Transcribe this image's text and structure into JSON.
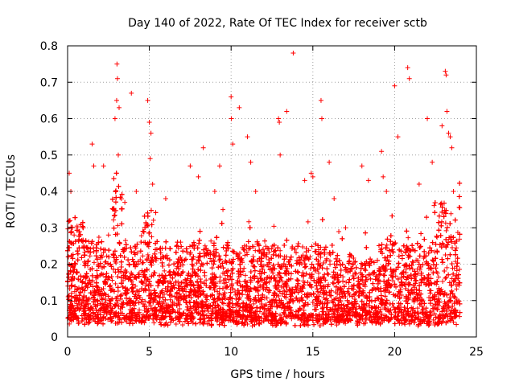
{
  "chart_data": {
    "type": "scatter",
    "title": "Day 140 of 2022, Rate Of TEC Index for receiver sctb",
    "xlabel": "GPS time / hours",
    "ylabel": "ROTI / TECUs",
    "xlim": [
      0,
      25
    ],
    "ylim": [
      0,
      0.8
    ],
    "xticks": [
      "0",
      "5",
      "10",
      "15",
      "20",
      "25"
    ],
    "yticks": [
      "0",
      "0.1",
      "0.2",
      "0.3",
      "0.4",
      "0.5",
      "0.6",
      "0.7",
      "0.8"
    ],
    "grid": true,
    "marker": "+",
    "color": "#ff0000",
    "series": [
      {
        "x": [
          0.1,
          0.15,
          0.2,
          0.4,
          0.6,
          1.0,
          1.5,
          1.6,
          2.2,
          2.5,
          2.9,
          3.0,
          3.02,
          3.05,
          3.1,
          3.15,
          3.5,
          3.9,
          4.2,
          4.9,
          5.0,
          5.05,
          5.1,
          5.2,
          6.0,
          7.5,
          8.0,
          8.3,
          9.0,
          9.3,
          9.5,
          10.0,
          10.02,
          10.1,
          10.5,
          11.0,
          11.2,
          11.5,
          12.9,
          12.95,
          13.0,
          13.4,
          13.8,
          14.5,
          14.9,
          15.0,
          15.5,
          15.55,
          16.0,
          16.3,
          17.0,
          18.0,
          18.4,
          19.2,
          19.3,
          19.5,
          20.0,
          20.2,
          20.8,
          20.9,
          21.5,
          22.0,
          22.3,
          22.9,
          23.1,
          23.15,
          23.2,
          23.3,
          23.4,
          23.5,
          23.6
        ],
        "y": [
          0.45,
          0.32,
          0.4,
          0.28,
          0.3,
          0.25,
          0.53,
          0.47,
          0.47,
          0.28,
          0.6,
          0.65,
          0.75,
          0.71,
          0.5,
          0.63,
          0.37,
          0.67,
          0.4,
          0.65,
          0.59,
          0.49,
          0.56,
          0.42,
          0.38,
          0.47,
          0.44,
          0.52,
          0.4,
          0.47,
          0.35,
          0.66,
          0.6,
          0.53,
          0.63,
          0.55,
          0.48,
          0.4,
          0.6,
          0.59,
          0.5,
          0.62,
          0.78,
          0.43,
          0.45,
          0.44,
          0.65,
          0.6,
          0.48,
          0.38,
          0.3,
          0.47,
          0.43,
          0.51,
          0.44,
          0.4,
          0.69,
          0.55,
          0.74,
          0.71,
          0.42,
          0.6,
          0.48,
          0.58,
          0.73,
          0.72,
          0.62,
          0.56,
          0.55,
          0.52,
          0.4
        ]
      }
    ]
  }
}
